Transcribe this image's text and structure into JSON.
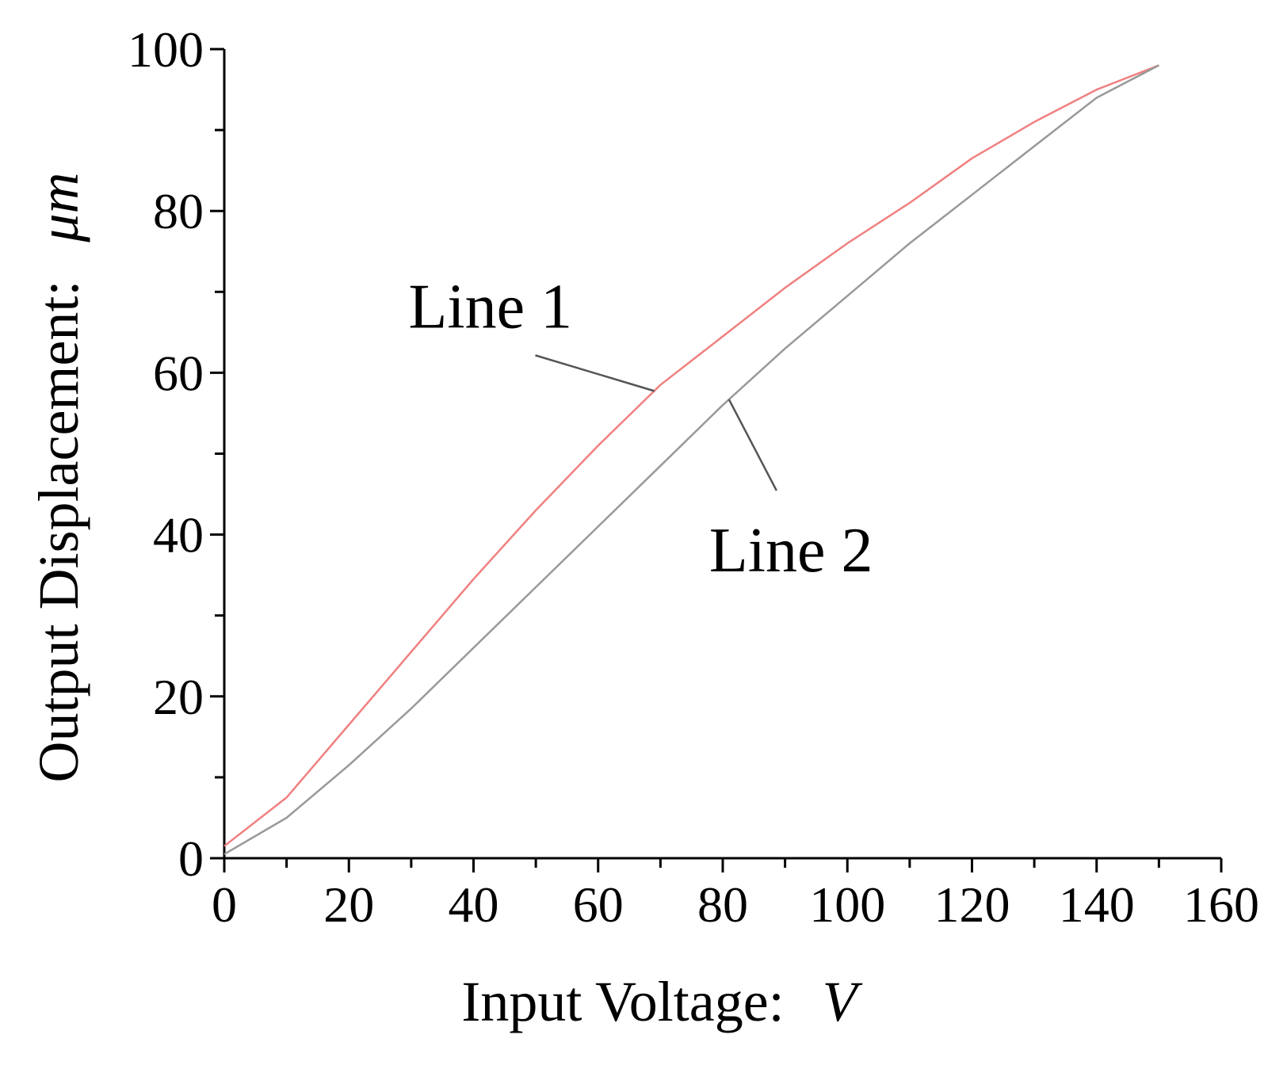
{
  "chart_data": {
    "type": "line",
    "xlabel": "Input Voltage:",
    "xlabel_unit": "V",
    "ylabel": "Output Displacement:",
    "ylabel_unit": "μm",
    "xlim": [
      0,
      160
    ],
    "ylim": [
      0,
      100
    ],
    "x_ticks": [
      0,
      20,
      40,
      60,
      80,
      100,
      120,
      140,
      160
    ],
    "y_ticks": [
      0,
      20,
      40,
      60,
      80,
      100
    ],
    "x_minor_step": 10,
    "y_minor_step": 10,
    "grid": false,
    "series": [
      {
        "name": "Line 1",
        "color": "#f08080",
        "x": [
          0,
          10,
          20,
          30,
          40,
          50,
          60,
          70,
          80,
          90,
          100,
          110,
          120,
          130,
          140,
          150
        ],
        "y": [
          1.5,
          7.5,
          16.5,
          25.5,
          34.5,
          43,
          51,
          58.5,
          64.5,
          70.5,
          76,
          81,
          86.5,
          91,
          95,
          98
        ]
      },
      {
        "name": "Line 2",
        "color": "#999999",
        "x": [
          0,
          10,
          20,
          30,
          40,
          50,
          60,
          70,
          80,
          90,
          100,
          110,
          120,
          130,
          140,
          150
        ],
        "y": [
          0.5,
          5,
          11.5,
          18.5,
          26,
          33.5,
          41,
          48.5,
          56,
          63,
          69.5,
          76,
          82,
          88,
          94,
          98
        ]
      }
    ],
    "annotations": [
      {
        "label": "Line 1",
        "series": 0,
        "anchor_x": 69
      },
      {
        "label": "Line 2",
        "series": 1,
        "anchor_x": 81
      }
    ]
  }
}
